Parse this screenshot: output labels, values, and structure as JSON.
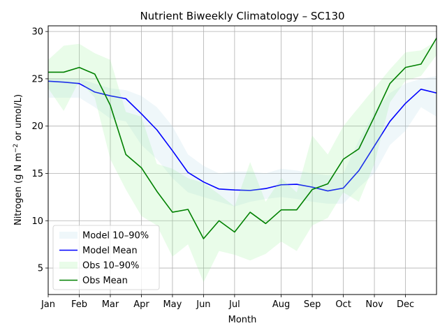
{
  "chart_data": {
    "type": "line",
    "title": "Nutrient Biweekly Climatology – SC130",
    "xlabel": "Month",
    "ylabel_parts": {
      "pre": "Nitrogen (g N m",
      "sup": "−2",
      "post": " or umol/L)"
    },
    "ylim": [
      2.2,
      30.6
    ],
    "yticks": [
      5,
      10,
      15,
      20,
      25,
      30
    ],
    "xlim": [
      0,
      25
    ],
    "month_ticks": [
      {
        "label": "Jan",
        "x": 0
      },
      {
        "label": "Feb",
        "x": 2
      },
      {
        "label": "Mar",
        "x": 4
      },
      {
        "label": "Apr",
        "x": 6
      },
      {
        "label": "May",
        "x": 8
      },
      {
        "label": "Jun",
        "x": 10
      },
      {
        "label": "Jul",
        "x": 12
      },
      {
        "label": "Aug",
        "x": 15
      },
      {
        "label": "Sep",
        "x": 17
      },
      {
        "label": "Oct",
        "x": 19
      },
      {
        "label": "Nov",
        "x": 21
      },
      {
        "label": "Dec",
        "x": 23
      }
    ],
    "grid": true,
    "legend_position": "lower-left",
    "x": [
      0,
      1,
      2,
      3,
      4,
      5,
      6,
      7,
      8,
      9,
      10,
      11,
      12,
      13,
      14,
      15,
      16,
      17,
      18,
      19,
      20,
      21,
      22,
      23,
      24,
      25
    ],
    "series": [
      {
        "name": "Model 10–90%",
        "kind": "band",
        "color": "#add8e6",
        "lower": [
          23.0,
          23.0,
          23.0,
          22.0,
          20.8,
          20.5,
          18.0,
          16.5,
          14.5,
          13.0,
          12.5,
          12.0,
          11.5,
          12.0,
          12.3,
          12.5,
          12.3,
          12.0,
          11.8,
          11.8,
          13.5,
          15.0,
          18.0,
          19.5,
          22.0,
          21.0
        ],
        "upper": [
          25.0,
          25.0,
          25.0,
          24.5,
          24.0,
          23.8,
          23.2,
          22.0,
          20.0,
          17.0,
          15.8,
          15.0,
          15.2,
          15.2,
          15.0,
          15.5,
          15.3,
          15.0,
          14.8,
          15.0,
          18.5,
          21.5,
          23.5,
          24.5,
          25.0,
          25.3
        ]
      },
      {
        "name": "Model Mean",
        "kind": "line",
        "color": "#0000ff",
        "values": [
          24.75,
          24.65,
          24.5,
          23.6,
          23.2,
          22.9,
          21.3,
          19.6,
          17.4,
          15.1,
          14.1,
          13.35,
          13.25,
          13.2,
          13.4,
          13.8,
          13.85,
          13.55,
          13.15,
          13.45,
          15.3,
          17.9,
          20.5,
          22.4,
          23.9,
          23.5
        ]
      },
      {
        "name": "Obs 10–90%",
        "kind": "band",
        "color": "#90ee90",
        "lower": [
          24.0,
          21.6,
          24.8,
          23.0,
          16.5,
          13.3,
          10.5,
          9.5,
          6.2,
          7.5,
          3.5,
          6.8,
          6.4,
          5.8,
          6.5,
          7.8,
          6.8,
          9.5,
          10.3,
          13.0,
          12.0,
          16.0,
          22.5,
          24.8,
          25.3,
          27.5
        ],
        "upper": [
          27.0,
          28.5,
          28.7,
          27.7,
          27.0,
          21.5,
          21.0,
          16.0,
          15.5,
          14.5,
          14.0,
          12.8,
          11.5,
          16.2,
          12.0,
          14.5,
          13.0,
          19.0,
          17.0,
          20.0,
          22.0,
          24.0,
          26.0,
          27.8,
          28.0,
          29.0
        ]
      },
      {
        "name": "Obs Mean",
        "kind": "line",
        "color": "#008000",
        "values": [
          25.7,
          25.7,
          26.2,
          25.5,
          22.2,
          17.0,
          15.6,
          13.1,
          10.9,
          11.2,
          8.1,
          10.0,
          8.8,
          10.9,
          9.7,
          11.15,
          11.15,
          13.3,
          13.9,
          16.5,
          17.6,
          21.0,
          24.5,
          26.2,
          26.55,
          29.3
        ]
      }
    ]
  }
}
